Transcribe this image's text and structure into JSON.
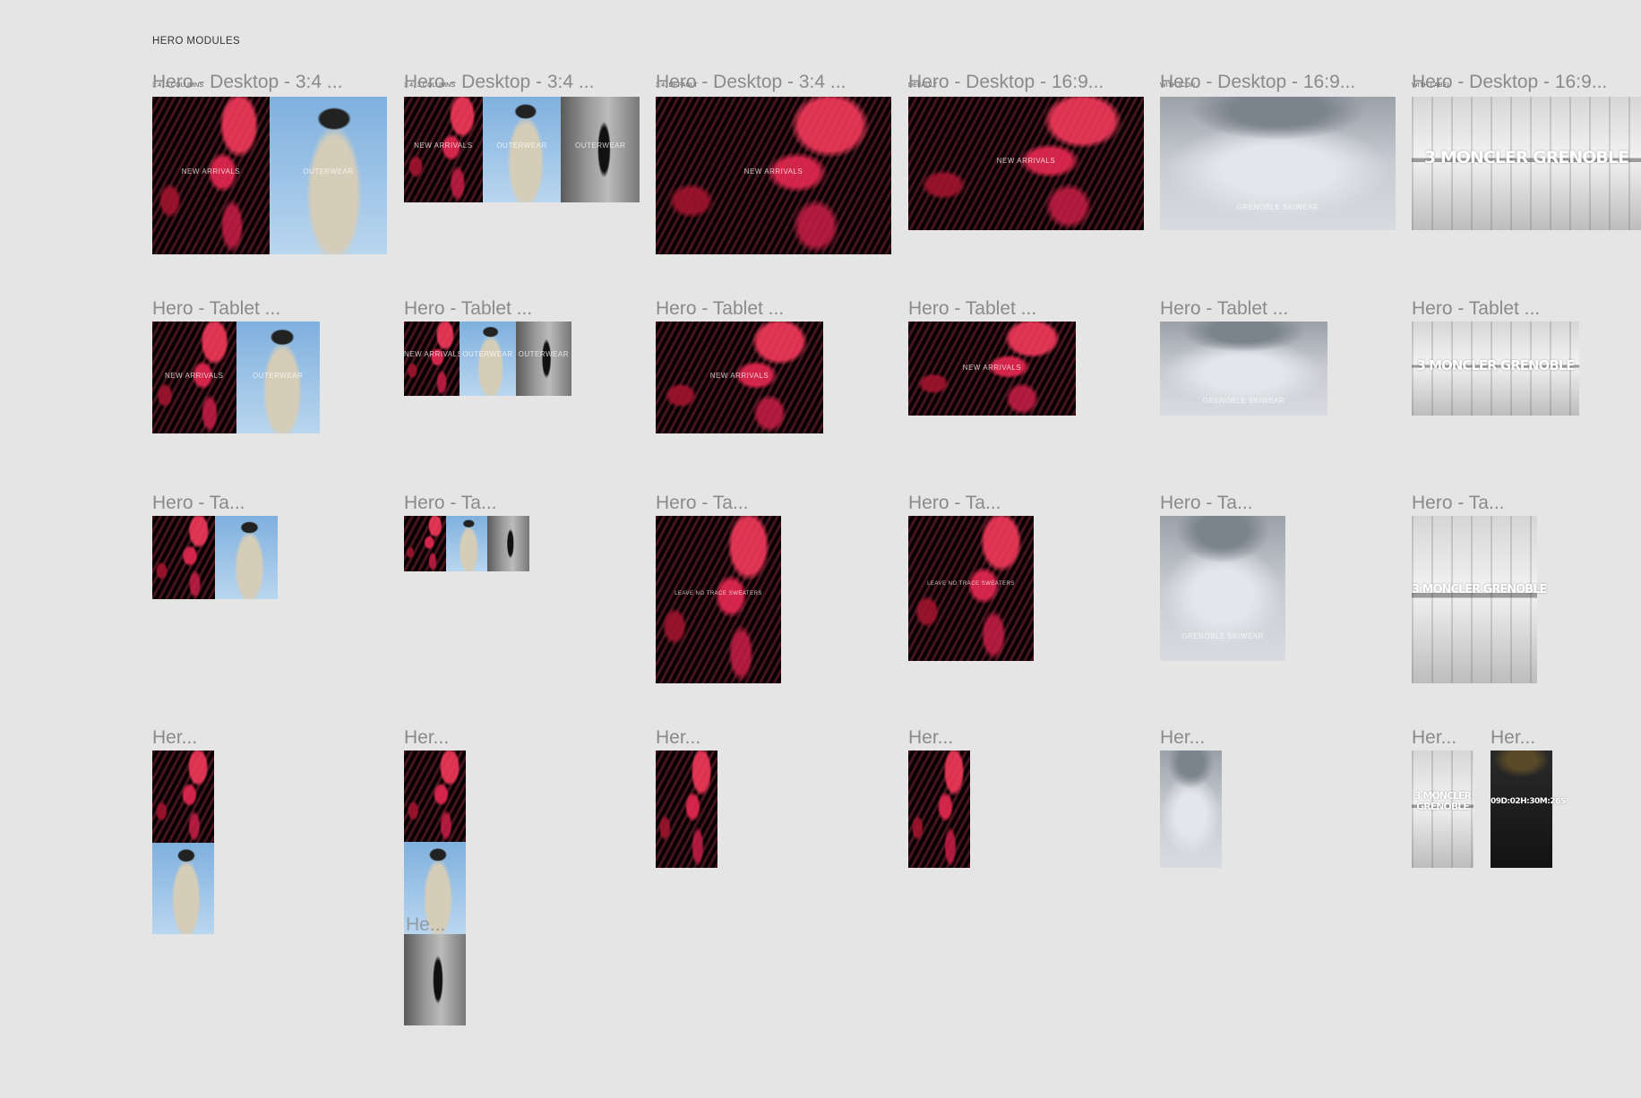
{
  "section_title": "HERO MODULES",
  "row1": [
    {
      "tag": "3:4, 2 COLUMNS",
      "name": "Hero  - Desktop - 3:4 ...",
      "panels": [
        "red",
        "sky"
      ],
      "captions": [
        "NEW ARRIVALS",
        "OUTERWEAR"
      ]
    },
    {
      "tag": "3:4, 3 COLUMNS",
      "name": "Hero  - Desktop - 3:4 ...",
      "panels": [
        "red",
        "sky",
        "street"
      ],
      "captions": [
        "NEW ARRIVALS",
        "OUTERWEAR",
        "OUTERWEAR"
      ]
    },
    {
      "tag": "3:4, DEFAULT",
      "name": "Hero  - Desktop - 3:4 ...",
      "panels": [
        "red"
      ],
      "captions": [
        "NEW ARRIVALS"
      ]
    },
    {
      "tag": "DEFAULT",
      "name": "Hero  - Desktop - 16:9...",
      "panels": [
        "red"
      ],
      "captions": [
        "NEW ARRIVALS"
      ]
    },
    {
      "tag": "WITH ICON",
      "name": "Hero  - Desktop - 16:9...",
      "panels": [
        "fog"
      ],
      "captions": [
        "GRENOBLE SKIWEAR"
      ]
    },
    {
      "tag": "WITH LABEL",
      "name": "Hero  - Desktop - 16:9...",
      "panels": [
        "hall"
      ],
      "big_text": "3 MONCLER GRENOBLE"
    }
  ],
  "row2": [
    {
      "name": "Hero  - Tablet ...",
      "captions": [
        "NEW ARRIVALS",
        "OUTERWEAR"
      ]
    },
    {
      "name": "Hero  - Tablet ...",
      "captions": [
        "NEW ARRIVALS",
        "OUTERWEAR",
        "OUTERWEAR"
      ]
    },
    {
      "name": "Hero  - Tablet ...",
      "captions": [
        "NEW ARRIVALS"
      ]
    },
    {
      "name": "Hero  - Tablet ...",
      "captions": [
        "NEW ARRIVALS"
      ]
    },
    {
      "name": "Hero  - Tablet ...",
      "captions": [
        "GRENOBLE SKIWEAR"
      ]
    },
    {
      "name": "Hero  - Tablet ...",
      "big_text": "3 MONCLER GRENOBLE"
    }
  ],
  "row3": [
    {
      "name": "Hero  - Ta..."
    },
    {
      "name": "Hero  - Ta..."
    },
    {
      "name": "Hero  - Ta...",
      "captions": [
        "LEAVE NO TRACE SWEATERS"
      ]
    },
    {
      "name": "Hero  - Ta...",
      "captions": [
        "LEAVE NO TRACE SWEATERS"
      ]
    },
    {
      "name": "Hero  - Ta...",
      "captions": [
        "GRENOBLE SKIWEAR"
      ]
    },
    {
      "name": "Hero  - Ta...",
      "big_text": "3 MONCLER GRENOBLE"
    }
  ],
  "row4": [
    {
      "name": "Her..."
    },
    {
      "name": "Her...",
      "overlay_name": "He..."
    },
    {
      "name": "Her..."
    },
    {
      "name": "Her..."
    },
    {
      "name": "Her..."
    },
    {
      "name": "Her...",
      "big_text": "3 MONCLER GRENOBLE"
    },
    {
      "name": "Her...",
      "big_text": "09D:02H:30M:26S"
    }
  ]
}
